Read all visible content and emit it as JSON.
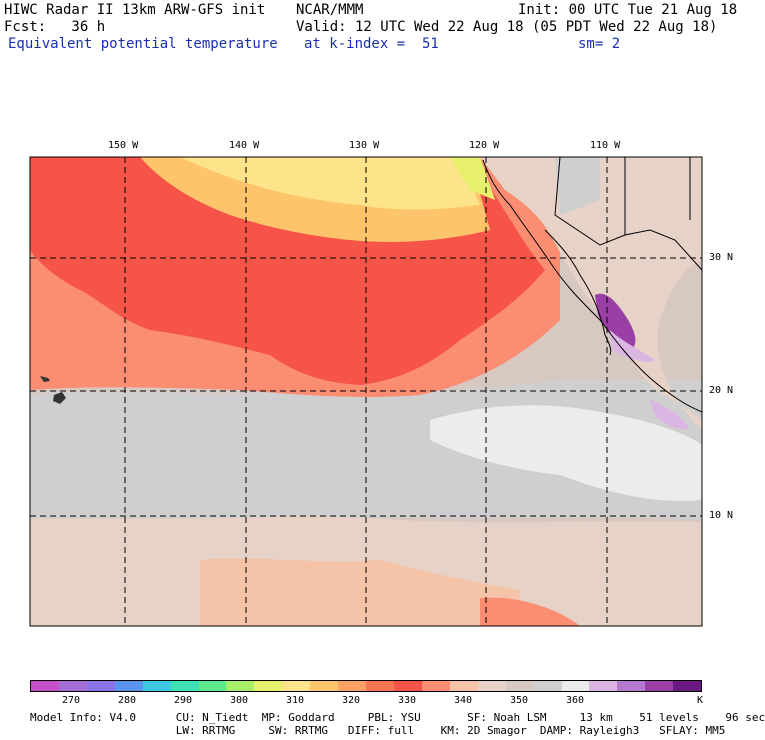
{
  "header": {
    "line1_left": "HIWC Radar II 13km ARW-GFS init",
    "line1_mid": "NCAR/MMM",
    "line1_right": "Init: 00 UTC Tue 21 Aug 18",
    "line2_left": "Fcst:   36 h",
    "line2_right": "Valid: 12 UTC Wed 22 Aug 18 (05 PDT Wed 22 Aug 18)",
    "line3_left": "Equivalent potential temperature",
    "line3_mid": "at k-index =  51",
    "line3_right": "sm= 2"
  },
  "map": {
    "lon_labels": [
      "150 W",
      "140 W",
      "130 W",
      "120 W",
      "110 W"
    ],
    "lat_labels": [
      "30 N",
      "20 N",
      "10 N"
    ]
  },
  "colorbar": {
    "colors": [
      "#c750c8",
      "#a46fd6",
      "#8a72e8",
      "#5a94ea",
      "#3dc7e0",
      "#3ee0b4",
      "#5de88e",
      "#a6ee6c",
      "#e7f06d",
      "#fde48a",
      "#fdc46b",
      "#fca163",
      "#fb7552",
      "#f65448",
      "#fb8d72",
      "#f4c3a8",
      "#e6d2c6",
      "#d7c8c2",
      "#cfcfcf",
      "#ececec",
      "#dcb6e3",
      "#b57ad0",
      "#9a3fa6",
      "#6b1a7f"
    ],
    "tick_labels": [
      "270",
      "280",
      "290",
      "300",
      "310",
      "320",
      "330",
      "340",
      "350",
      "360"
    ],
    "unit": "K"
  },
  "footer": {
    "line1": "Model Info: V4.0      CU: N_Tiedt  MP: Goddard     PBL: YSU       SF: Noah LSM     13 km    51 levels    96 sec",
    "line2": "                      LW: RRTMG     SW: RRTMG   DIFF: full    KM: 2D Smagor  DAMP: Rayleigh3   SFLAY: MM5"
  }
}
